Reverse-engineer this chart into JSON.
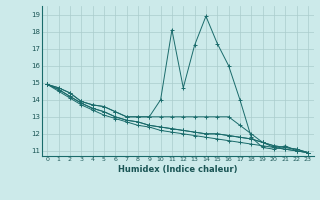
{
  "xlabel": "Humidex (Indice chaleur)",
  "bg_color": "#cceaea",
  "grid_color": "#aacccc",
  "line_color": "#1a6b6b",
  "xlim": [
    -0.5,
    23.5
  ],
  "ylim": [
    10.7,
    19.5
  ],
  "xticks": [
    0,
    1,
    2,
    3,
    4,
    5,
    6,
    7,
    8,
    9,
    10,
    11,
    12,
    13,
    14,
    15,
    16,
    17,
    18,
    19,
    20,
    21,
    22,
    23
  ],
  "yticks": [
    11,
    12,
    13,
    14,
    15,
    16,
    17,
    18,
    19
  ],
  "series": [
    [
      14.9,
      14.7,
      14.4,
      13.9,
      13.7,
      13.6,
      13.3,
      13.0,
      13.0,
      13.0,
      14.0,
      18.1,
      14.7,
      17.2,
      18.9,
      17.3,
      16.0,
      14.0,
      11.8,
      11.2,
      11.1,
      11.3,
      11.0,
      10.9
    ],
    [
      14.9,
      14.7,
      14.4,
      13.9,
      13.7,
      13.6,
      13.3,
      13.0,
      13.0,
      13.0,
      13.0,
      13.0,
      13.0,
      13.0,
      13.0,
      13.0,
      13.0,
      12.5,
      12.0,
      11.5,
      11.2,
      11.1,
      11.0,
      10.9
    ],
    [
      14.9,
      14.6,
      14.2,
      13.8,
      13.5,
      13.3,
      13.0,
      12.8,
      12.7,
      12.5,
      12.4,
      12.3,
      12.2,
      12.1,
      12.0,
      12.0,
      11.9,
      11.8,
      11.7,
      11.5,
      11.3,
      11.2,
      11.1,
      10.9
    ],
    [
      14.9,
      14.6,
      14.2,
      13.8,
      13.5,
      13.3,
      13.0,
      12.8,
      12.7,
      12.5,
      12.4,
      12.3,
      12.2,
      12.1,
      12.0,
      12.0,
      11.9,
      11.8,
      11.7,
      11.5,
      11.3,
      11.2,
      11.1,
      10.9
    ],
    [
      14.9,
      14.5,
      14.1,
      13.7,
      13.4,
      13.1,
      12.9,
      12.7,
      12.5,
      12.4,
      12.2,
      12.1,
      12.0,
      11.9,
      11.8,
      11.7,
      11.6,
      11.5,
      11.4,
      11.3,
      11.2,
      11.1,
      11.0,
      10.9
    ]
  ]
}
